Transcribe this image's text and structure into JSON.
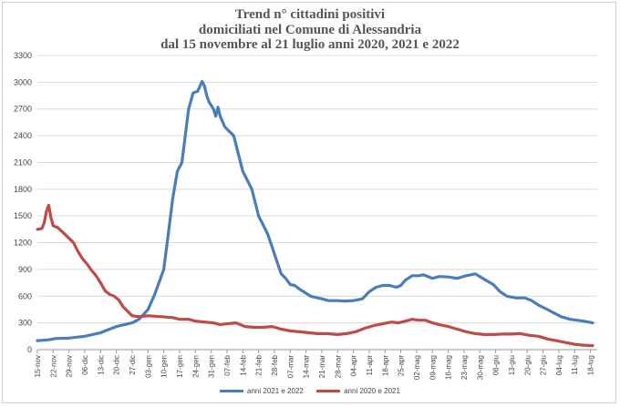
{
  "title_lines": [
    "Trend n° cittadini positivi",
    "domiciliati nel Comune di Alessandria",
    "dal 15 novembre al 21 luglio anni 2020, 2021 e 2022"
  ],
  "colors": {
    "series_2021_2022": "#4a7ebb",
    "series_2020_2021": "#be4b48",
    "grid": "#d9d9d9"
  },
  "chart_data": {
    "type": "line",
    "title": "Trend n° cittadini positivi domiciliati nel Comune di Alessandria dal 15 novembre al 21 luglio anni 2020, 2021 e 2022",
    "ylim": [
      0,
      3300
    ],
    "y_ticks": [
      "0",
      "300",
      "600",
      "900",
      "1200",
      "1500",
      "1800",
      "2100",
      "2400",
      "2700",
      "3000",
      "3300"
    ],
    "x_tick_labels": [
      "15-nov",
      "22-nov",
      "29-nov",
      "06-dic",
      "13-dic",
      "20-dic",
      "27-dic",
      "03-gen",
      "10-gen",
      "17-gen",
      "24-gen",
      "31-gen",
      "07-feb",
      "14-feb",
      "21-feb",
      "28-feb",
      "07-mar",
      "14-mar",
      "21-mar",
      "28-mar",
      "04-apr",
      "11-apr",
      "18-apr",
      "25-apr",
      "02-mag",
      "09-mag",
      "16-mag",
      "23-mag",
      "30-mag",
      "06-giu",
      "13-giu",
      "20-giu",
      "27-giu",
      "04-lug",
      "11-lug",
      "18-lug"
    ],
    "x_total_days": 248,
    "grid": true,
    "legend_position": "bottom",
    "series": [
      {
        "name": "anni 2021 e 2022",
        "color": "#4a7ebb",
        "points": [
          [
            0,
            100
          ],
          [
            5,
            110
          ],
          [
            8,
            125
          ],
          [
            14,
            130
          ],
          [
            21,
            150
          ],
          [
            28,
            190
          ],
          [
            35,
            260
          ],
          [
            42,
            300
          ],
          [
            45,
            340
          ],
          [
            49,
            450
          ],
          [
            52,
            620
          ],
          [
            56,
            900
          ],
          [
            58,
            1300
          ],
          [
            60,
            1700
          ],
          [
            62,
            2000
          ],
          [
            64,
            2100
          ],
          [
            66,
            2500
          ],
          [
            67,
            2700
          ],
          [
            69,
            2880
          ],
          [
            71,
            2900
          ],
          [
            73,
            3010
          ],
          [
            74,
            2960
          ],
          [
            75,
            2850
          ],
          [
            76,
            2780
          ],
          [
            78,
            2700
          ],
          [
            79,
            2620
          ],
          [
            80,
            2720
          ],
          [
            81,
            2620
          ],
          [
            83,
            2500
          ],
          [
            85,
            2450
          ],
          [
            87,
            2400
          ],
          [
            89,
            2200
          ],
          [
            91,
            2000
          ],
          [
            93,
            1900
          ],
          [
            95,
            1800
          ],
          [
            97,
            1600
          ],
          [
            98,
            1500
          ],
          [
            100,
            1400
          ],
          [
            102,
            1300
          ],
          [
            104,
            1150
          ],
          [
            106,
            1000
          ],
          [
            108,
            850
          ],
          [
            110,
            800
          ],
          [
            112,
            730
          ],
          [
            114,
            720
          ],
          [
            116,
            680
          ],
          [
            118,
            650
          ],
          [
            121,
            600
          ],
          [
            126,
            570
          ],
          [
            129,
            550
          ],
          [
            133,
            550
          ],
          [
            136,
            545
          ],
          [
            140,
            550
          ],
          [
            144,
            570
          ],
          [
            147,
            650
          ],
          [
            150,
            700
          ],
          [
            153,
            720
          ],
          [
            156,
            720
          ],
          [
            159,
            700
          ],
          [
            161,
            720
          ],
          [
            163,
            780
          ],
          [
            166,
            830
          ],
          [
            169,
            830
          ],
          [
            171,
            840
          ],
          [
            175,
            800
          ],
          [
            178,
            820
          ],
          [
            182,
            815
          ],
          [
            186,
            800
          ],
          [
            190,
            830
          ],
          [
            194,
            850
          ],
          [
            198,
            790
          ],
          [
            202,
            730
          ],
          [
            205,
            650
          ],
          [
            208,
            600
          ],
          [
            212,
            580
          ],
          [
            216,
            580
          ],
          [
            219,
            550
          ],
          [
            222,
            500
          ],
          [
            226,
            450
          ],
          [
            229,
            410
          ],
          [
            232,
            370
          ],
          [
            236,
            340
          ],
          [
            239,
            330
          ],
          [
            242,
            320
          ],
          [
            246,
            300
          ]
        ]
      },
      {
        "name": "anni 2020 e 2021",
        "color": "#be4b48",
        "points": [
          [
            0,
            1350
          ],
          [
            2,
            1360
          ],
          [
            3,
            1420
          ],
          [
            4,
            1550
          ],
          [
            5,
            1620
          ],
          [
            6,
            1480
          ],
          [
            7,
            1390
          ],
          [
            9,
            1370
          ],
          [
            12,
            1300
          ],
          [
            14,
            1250
          ],
          [
            16,
            1200
          ],
          [
            18,
            1100
          ],
          [
            20,
            1020
          ],
          [
            22,
            960
          ],
          [
            24,
            890
          ],
          [
            26,
            830
          ],
          [
            28,
            750
          ],
          [
            30,
            660
          ],
          [
            32,
            620
          ],
          [
            34,
            600
          ],
          [
            36,
            560
          ],
          [
            38,
            480
          ],
          [
            40,
            430
          ],
          [
            42,
            380
          ],
          [
            45,
            370
          ],
          [
            49,
            380
          ],
          [
            55,
            370
          ],
          [
            60,
            360
          ],
          [
            63,
            340
          ],
          [
            67,
            340
          ],
          [
            70,
            320
          ],
          [
            74,
            310
          ],
          [
            78,
            300
          ],
          [
            81,
            280
          ],
          [
            84,
            290
          ],
          [
            88,
            300
          ],
          [
            92,
            260
          ],
          [
            96,
            250
          ],
          [
            100,
            250
          ],
          [
            104,
            260
          ],
          [
            108,
            230
          ],
          [
            112,
            210
          ],
          [
            116,
            200
          ],
          [
            120,
            190
          ],
          [
            124,
            180
          ],
          [
            128,
            180
          ],
          [
            133,
            170
          ],
          [
            137,
            180
          ],
          [
            141,
            200
          ],
          [
            145,
            240
          ],
          [
            149,
            270
          ],
          [
            153,
            290
          ],
          [
            157,
            310
          ],
          [
            160,
            300
          ],
          [
            163,
            320
          ],
          [
            166,
            340
          ],
          [
            169,
            330
          ],
          [
            172,
            330
          ],
          [
            175,
            300
          ],
          [
            178,
            280
          ],
          [
            182,
            260
          ],
          [
            186,
            230
          ],
          [
            190,
            200
          ],
          [
            194,
            180
          ],
          [
            198,
            170
          ],
          [
            202,
            170
          ],
          [
            206,
            175
          ],
          [
            210,
            175
          ],
          [
            214,
            180
          ],
          [
            218,
            160
          ],
          [
            222,
            150
          ],
          [
            226,
            120
          ],
          [
            230,
            100
          ],
          [
            234,
            80
          ],
          [
            238,
            60
          ],
          [
            242,
            50
          ],
          [
            246,
            45
          ]
        ]
      }
    ]
  }
}
